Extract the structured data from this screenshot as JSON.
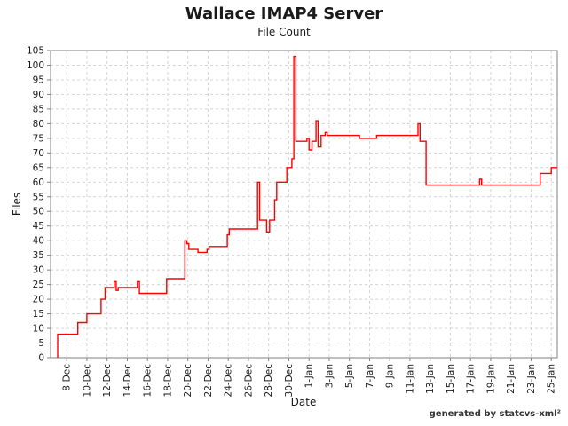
{
  "chart_data": {
    "type": "line",
    "step": true,
    "title": "Wallace IMAP4 Server",
    "subtitle": "File Count",
    "xlabel": "Date",
    "ylabel": "Files",
    "legend": "none",
    "grid": true,
    "line_color": "#ff0000",
    "grid_color": "#d4d4d4",
    "axis_color": "#808080",
    "text_color": "#1a1a1a",
    "x_unit": "day index (Dec 1 = 1, Jan 1 = 32)",
    "xlim_days": [
      6.4,
      56.6
    ],
    "ylim": [
      0,
      105
    ],
    "y_ticks": [
      0,
      5,
      10,
      15,
      20,
      25,
      30,
      35,
      40,
      45,
      50,
      55,
      60,
      65,
      70,
      75,
      80,
      85,
      90,
      95,
      100,
      105
    ],
    "x_ticks": [
      {
        "day": 8,
        "label": "8-Dec"
      },
      {
        "day": 10,
        "label": "10-Dec"
      },
      {
        "day": 12,
        "label": "12-Dec"
      },
      {
        "day": 14,
        "label": "14-Dec"
      },
      {
        "day": 16,
        "label": "16-Dec"
      },
      {
        "day": 18,
        "label": "18-Dec"
      },
      {
        "day": 20,
        "label": "20-Dec"
      },
      {
        "day": 22,
        "label": "22-Dec"
      },
      {
        "day": 24,
        "label": "24-Dec"
      },
      {
        "day": 26,
        "label": "26-Dec"
      },
      {
        "day": 28,
        "label": "28-Dec"
      },
      {
        "day": 30,
        "label": "30-Dec"
      },
      {
        "day": 32,
        "label": "1-Jan"
      },
      {
        "day": 34,
        "label": "3-Jan"
      },
      {
        "day": 36,
        "label": "5-Jan"
      },
      {
        "day": 38,
        "label": "7-Jan"
      },
      {
        "day": 40,
        "label": "9-Jan"
      },
      {
        "day": 42,
        "label": "11-Jan"
      },
      {
        "day": 44,
        "label": "13-Jan"
      },
      {
        "day": 46,
        "label": "15-Jan"
      },
      {
        "day": 48,
        "label": "17-Jan"
      },
      {
        "day": 50,
        "label": "19-Jan"
      },
      {
        "day": 52,
        "label": "21-Jan"
      },
      {
        "day": 54,
        "label": "23-Jan"
      },
      {
        "day": 56,
        "label": "25-Jan"
      }
    ],
    "series": [
      {
        "name": "File Count",
        "points_day_value": [
          [
            7.1,
            0
          ],
          [
            7.1,
            8
          ],
          [
            9.1,
            12
          ],
          [
            10.0,
            15
          ],
          [
            11.4,
            20
          ],
          [
            11.8,
            24
          ],
          [
            12.7,
            26
          ],
          [
            12.9,
            23
          ],
          [
            13.1,
            24
          ],
          [
            15.0,
            26
          ],
          [
            15.2,
            22
          ],
          [
            17.9,
            27
          ],
          [
            19.7,
            40
          ],
          [
            19.9,
            39
          ],
          [
            20.1,
            37
          ],
          [
            21.0,
            36
          ],
          [
            21.9,
            37
          ],
          [
            22.1,
            38
          ],
          [
            23.9,
            42
          ],
          [
            24.1,
            44
          ],
          [
            26.9,
            60
          ],
          [
            27.1,
            47
          ],
          [
            27.8,
            43
          ],
          [
            28.1,
            47
          ],
          [
            28.6,
            54
          ],
          [
            28.8,
            60
          ],
          [
            29.8,
            65
          ],
          [
            30.3,
            68
          ],
          [
            30.5,
            103
          ],
          [
            30.7,
            74
          ],
          [
            31.8,
            75
          ],
          [
            32.0,
            71
          ],
          [
            32.3,
            74
          ],
          [
            32.7,
            81
          ],
          [
            32.9,
            72
          ],
          [
            33.2,
            76
          ],
          [
            33.6,
            77
          ],
          [
            33.8,
            76
          ],
          [
            37.0,
            75
          ],
          [
            38.7,
            76
          ],
          [
            42.8,
            80
          ],
          [
            43.0,
            74
          ],
          [
            43.6,
            59
          ],
          [
            48.9,
            61
          ],
          [
            49.1,
            59
          ],
          [
            54.9,
            63
          ],
          [
            56.0,
            65
          ],
          [
            56.6,
            65
          ]
        ]
      }
    ]
  },
  "footer": {
    "text": "generated by statcvs-xml²"
  }
}
